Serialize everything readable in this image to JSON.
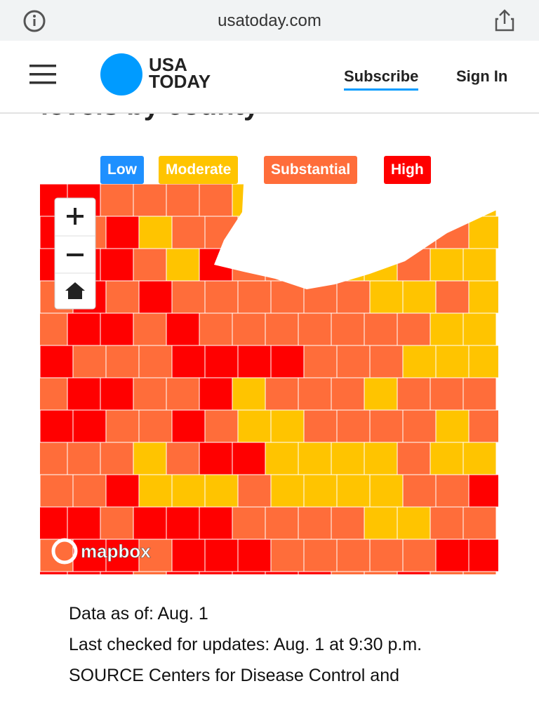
{
  "browser": {
    "url": "usatoday.com"
  },
  "header": {
    "logo": [
      "USA",
      "TODAY"
    ],
    "subscribe": "Subscribe",
    "sign_in": "Sign In"
  },
  "article": {
    "heading": "levels by county",
    "legend": [
      "Low",
      "Moderate",
      "Substantial",
      "High"
    ],
    "attribution": "mapbox",
    "notes": [
      "Data as of: Aug. 1",
      "Last checked for updates: Aug. 1 at 9:30 p.m.",
      "SOURCE Centers for Disease Control and"
    ]
  }
}
